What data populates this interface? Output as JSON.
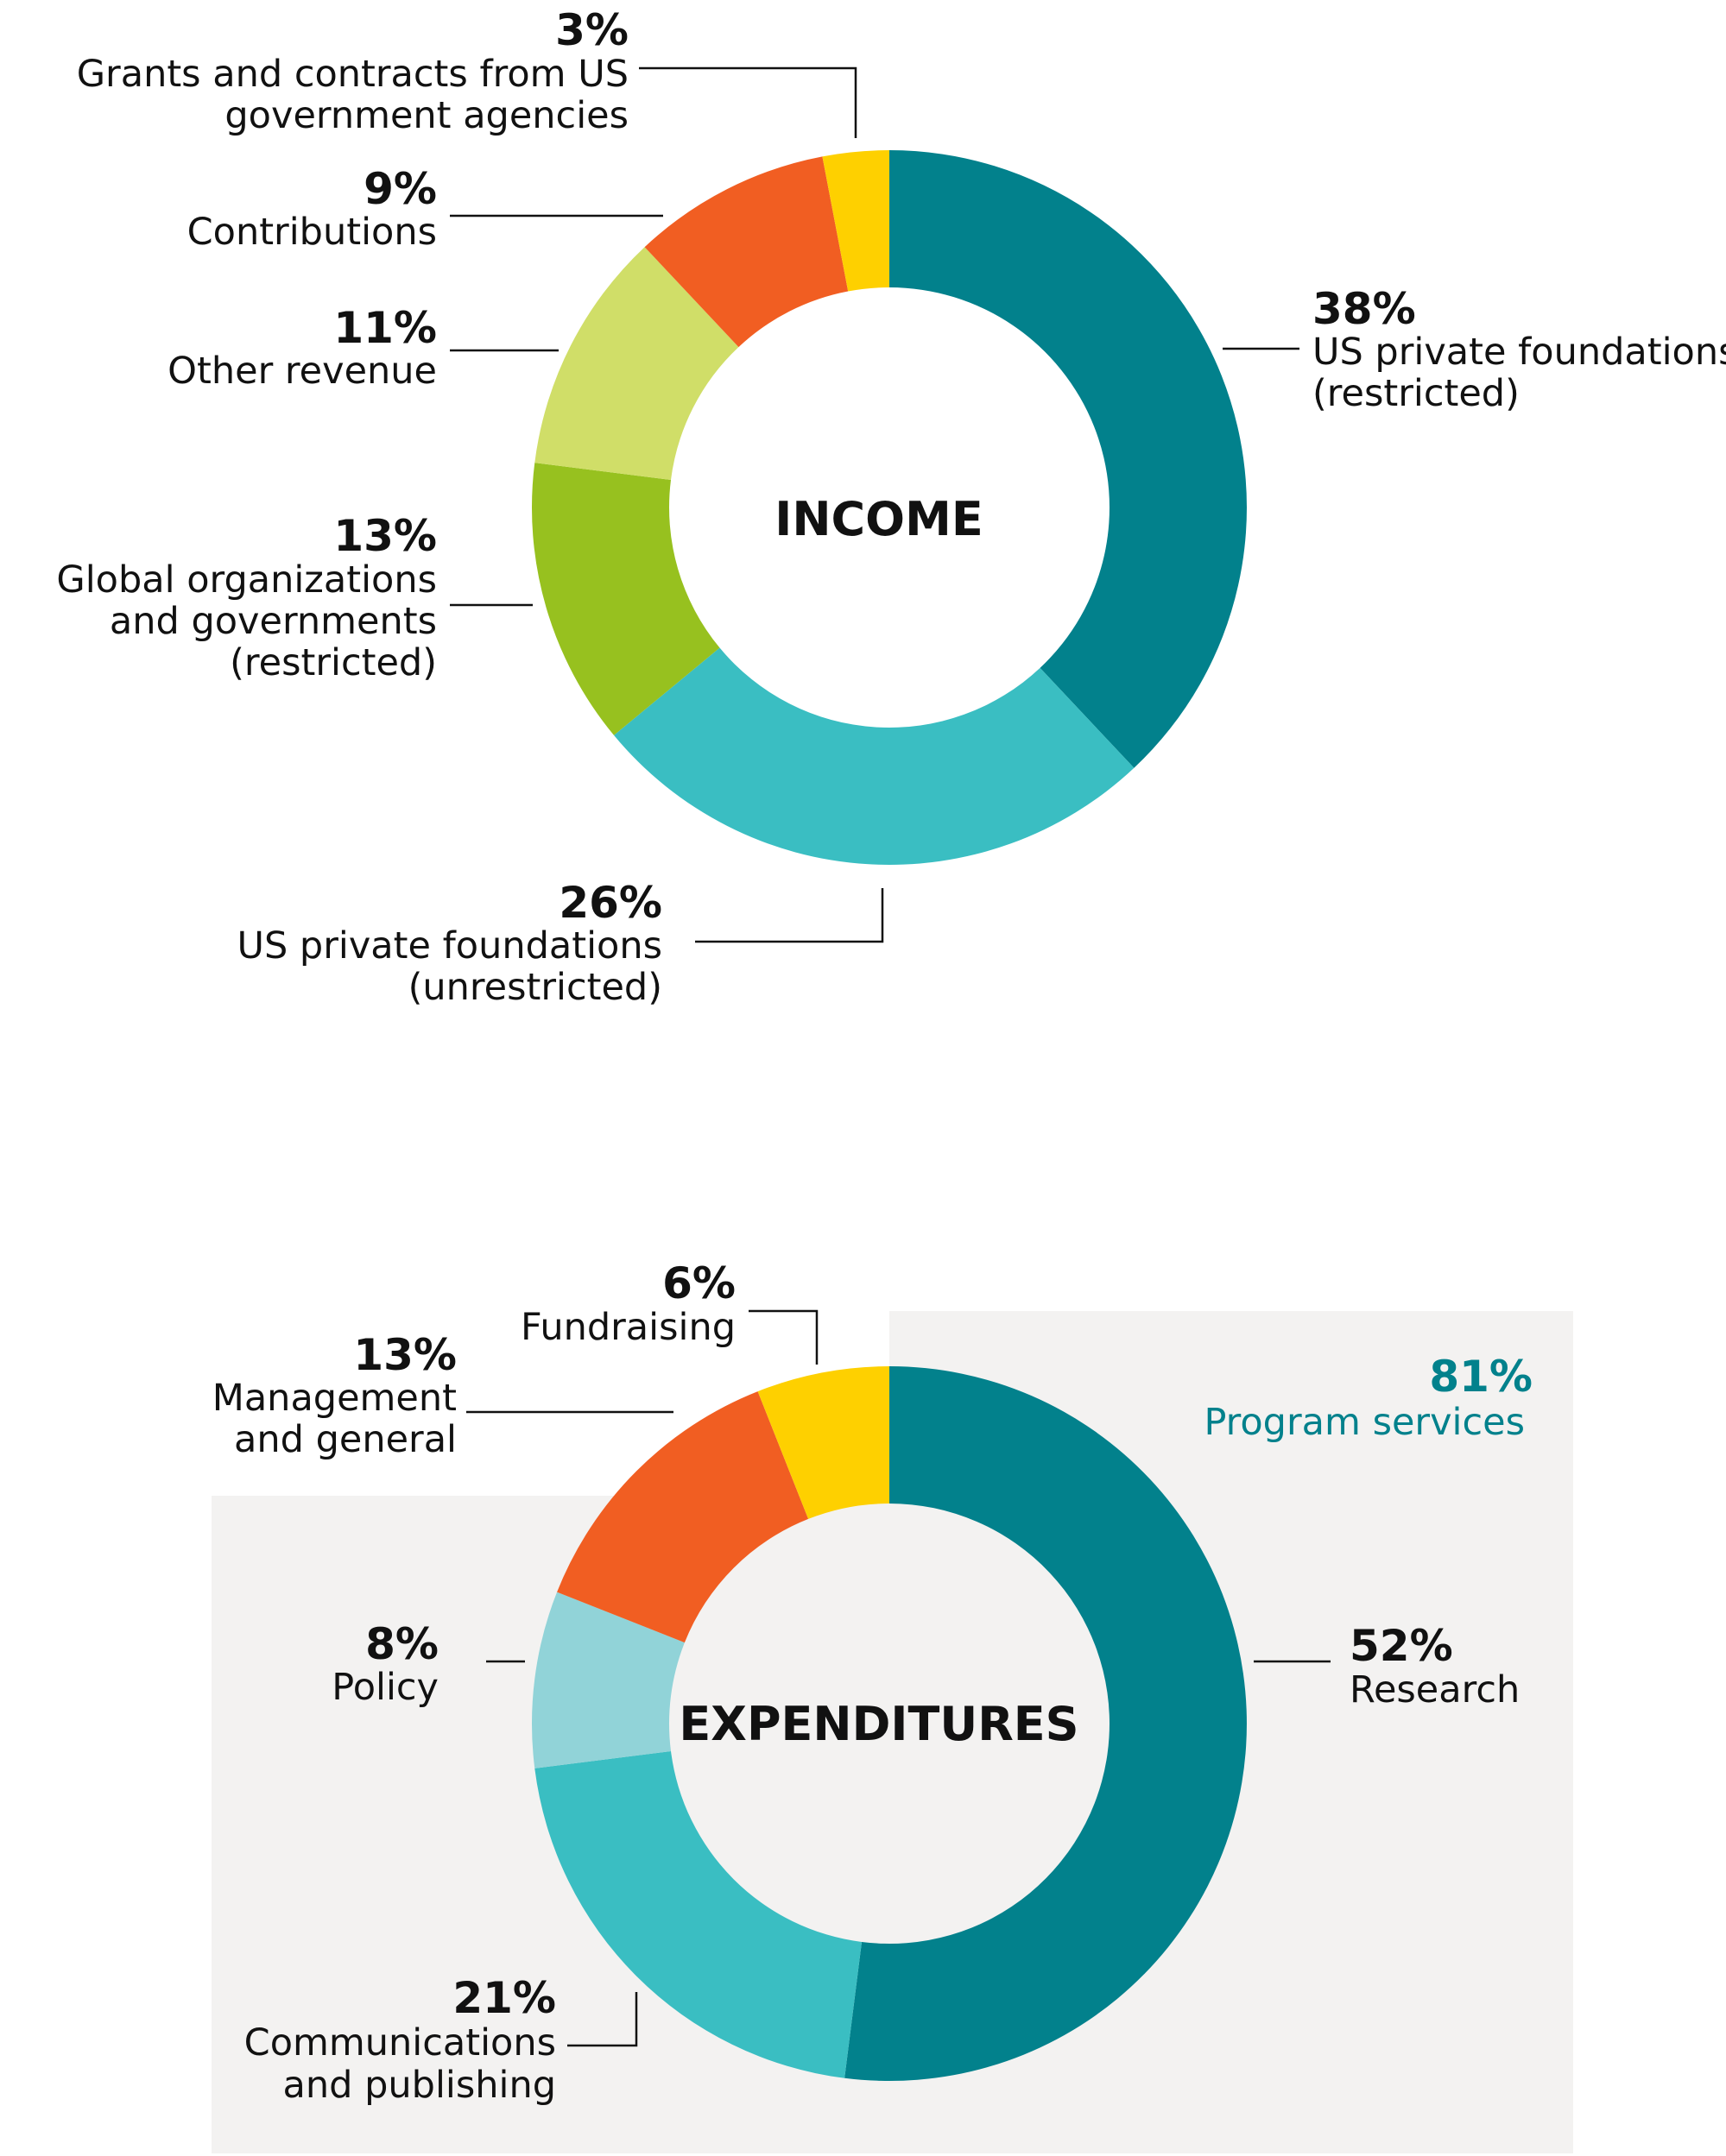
{
  "chart_data": [
    {
      "type": "pie",
      "title": "INCOME",
      "slices": [
        {
          "label": "US private foundations (restricted)",
          "label_lines": [
            "US private foundations",
            "(restricted)"
          ],
          "value": 38,
          "pct_label": "38%",
          "color": "#02818c"
        },
        {
          "label": "US private foundations (unrestricted)",
          "label_lines": [
            "US private foundations",
            "(unrestricted)"
          ],
          "value": 26,
          "pct_label": "26%",
          "color": "#3abec2"
        },
        {
          "label": "Global organizations and governments (restricted)",
          "label_lines": [
            "Global organizations",
            "and governments",
            "(restricted)"
          ],
          "value": 13,
          "pct_label": "13%",
          "color": "#97c11f"
        },
        {
          "label": "Other revenue",
          "label_lines": [
            "Other revenue"
          ],
          "value": 11,
          "pct_label": "11%",
          "color": "#d0de68"
        },
        {
          "label": "Contributions",
          "label_lines": [
            "Contributions"
          ],
          "value": 9,
          "pct_label": "9%",
          "color": "#f15e22"
        },
        {
          "label": "Grants and contracts from US government agencies",
          "label_lines": [
            "Grants and contracts from US",
            "government agencies"
          ],
          "value": 3,
          "pct_label": "3%",
          "color": "#fed000"
        }
      ]
    },
    {
      "type": "pie",
      "title": "EXPENDITURES",
      "slices": [
        {
          "label": "Research",
          "label_lines": [
            "Research"
          ],
          "value": 52,
          "pct_label": "52%",
          "color": "#02818c"
        },
        {
          "label": "Communications and publishing",
          "label_lines": [
            "Communications",
            "and publishing"
          ],
          "value": 21,
          "pct_label": "21%",
          "color": "#3abec2"
        },
        {
          "label": "Policy",
          "label_lines": [
            "Policy"
          ],
          "value": 8,
          "pct_label": "8%",
          "color": "#91d3d8"
        },
        {
          "label": "Management and general",
          "label_lines": [
            "Management",
            "and general"
          ],
          "value": 13,
          "pct_label": "13%",
          "color": "#f15e22"
        },
        {
          "label": "Fundraising",
          "label_lines": [
            "Fundraising"
          ],
          "value": 6,
          "pct_label": "6%",
          "color": "#fed000"
        }
      ],
      "annotation": {
        "value": 81,
        "pct_label": "81%",
        "label": "Program services",
        "color": "#02818c"
      }
    }
  ],
  "colors": {
    "background": "#ffffff",
    "highlight_panel": "#f3f2f1",
    "text": "#111111",
    "accent": "#02818c"
  }
}
